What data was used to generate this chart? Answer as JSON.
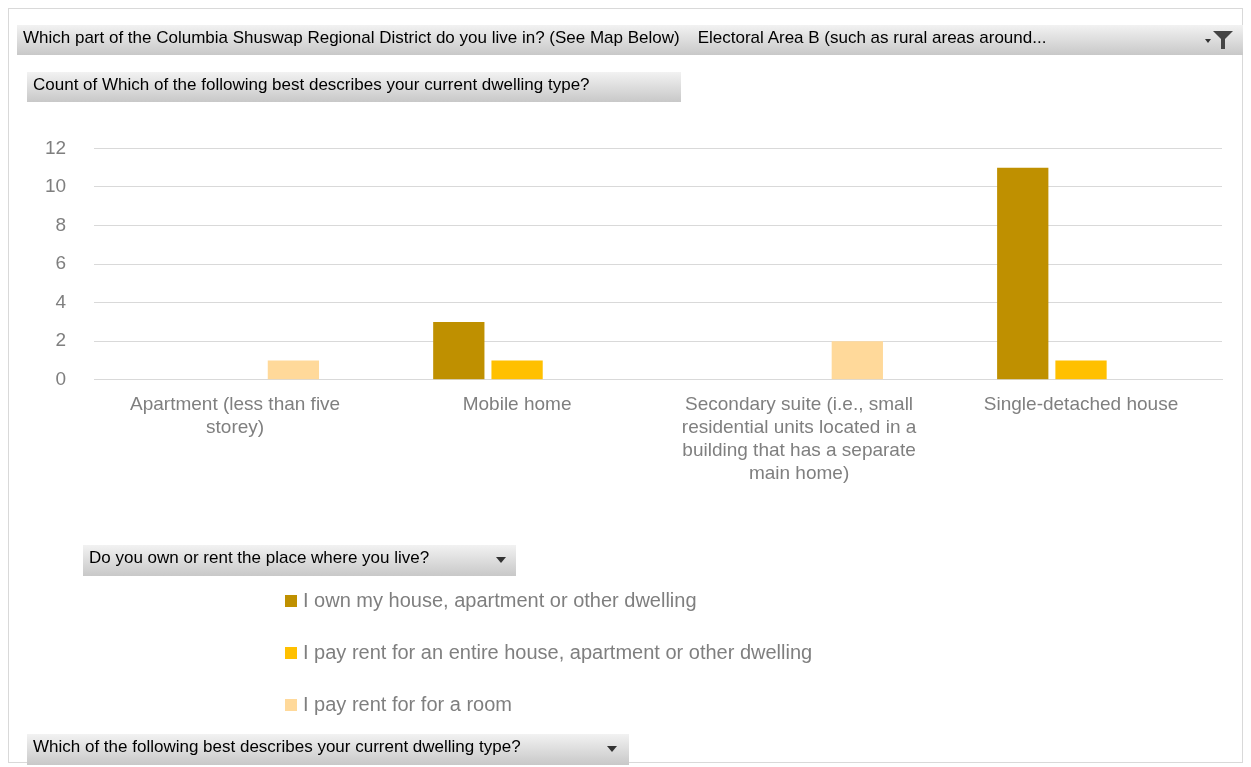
{
  "chart_data": {
    "type": "bar",
    "title": "Count of Which of the following best describes your current dwelling type?",
    "annotations": [
      "Which part of the Columbia Shuswap Regional District do you live in?  (See Map Below)",
      "Electoral Area B (such as rural areas around...",
      "Which of the following best describes your current dwelling type?"
    ],
    "legend_title": "Do you own or rent the place where you live?",
    "categories": [
      "Apartment (less than five storey)",
      "Mobile home",
      "Secondary suite (i.e., small residential units located in a building that has a separate main home)",
      "Single-detached house"
    ],
    "series": [
      {
        "name": "I own my house, apartment or other dwelling",
        "color": "#bf9000",
        "values": [
          null,
          3,
          null,
          11
        ]
      },
      {
        "name": "I pay rent for an entire house, apartment or other dwelling",
        "color": "#ffc000",
        "values": [
          null,
          1,
          null,
          1
        ]
      },
      {
        "name": "I pay rent for for a room",
        "color": "#ffd99a",
        "values": [
          1,
          null,
          2,
          null
        ]
      }
    ],
    "ylim": [
      0,
      12
    ],
    "yticks": [
      0,
      2,
      4,
      6,
      8,
      10,
      12
    ],
    "grid": "y",
    "legend": "bottom"
  }
}
